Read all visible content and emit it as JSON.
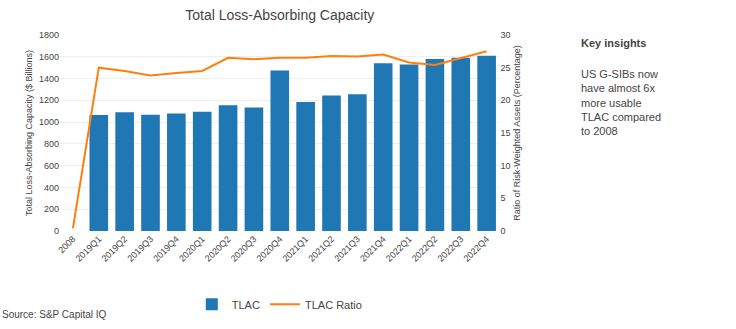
{
  "chart_data": {
    "type": "bar",
    "title": "Total Loss-Absorbing Capacity",
    "ylabel": "Total Loss-Absorbing Capacity ($ Billions)",
    "y2label": "Ratio of Risk-Weighted Assets (Percentage)",
    "source": "Source: S&P Capital IQ",
    "categories": [
      "2008",
      "2019Q1",
      "2019Q2",
      "2019Q3",
      "2019Q4",
      "2020Q1",
      "2020Q2",
      "2020Q3",
      "2020Q4",
      "2021Q1",
      "2021Q2",
      "2021Q3",
      "2021Q4",
      "2022Q1",
      "2022Q2",
      "2022Q3",
      "2022Q4"
    ],
    "series": [
      {
        "name": "TLAC",
        "type": "bar",
        "values": [
          null,
          1065,
          1090,
          1068,
          1080,
          1095,
          1155,
          1135,
          1475,
          1185,
          1245,
          1255,
          1540,
          1530,
          1580,
          1590,
          1610
        ]
      },
      {
        "name": "TLAC Ratio",
        "type": "line",
        "axis": "y2",
        "values": [
          0.4,
          25.0,
          24.5,
          23.8,
          24.2,
          24.5,
          26.5,
          26.3,
          26.5,
          26.5,
          26.8,
          26.7,
          27.0,
          25.8,
          25.4,
          26.5,
          27.5
        ]
      }
    ],
    "ylim": [
      0,
      1800
    ],
    "yticks": [
      0,
      200,
      400,
      600,
      800,
      1000,
      1200,
      1400,
      1600,
      1800
    ],
    "y2lim": [
      0,
      30
    ],
    "y2ticks": [
      0,
      5,
      10,
      15,
      20,
      25,
      30
    ],
    "grid": true,
    "legend": "bottom",
    "key_insights_title": "Key insights",
    "key_insights_text": "US G-SIBs now\nhave almost 6x\nmore usable\nTLAC compared\nto 2008"
  }
}
